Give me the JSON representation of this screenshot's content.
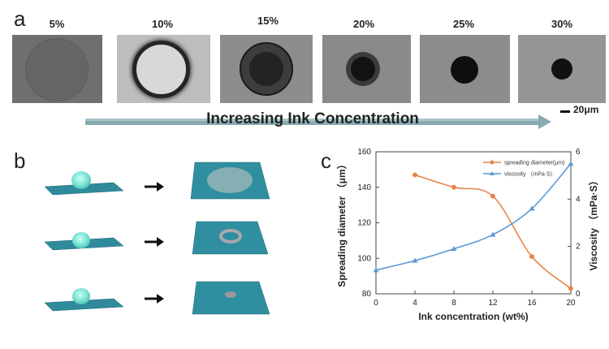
{
  "panels": {
    "a": "a",
    "b": "b",
    "c": "c"
  },
  "micrographs": [
    {
      "label": "5%"
    },
    {
      "label": "10%"
    },
    {
      "label": "15%"
    },
    {
      "label": "20%"
    },
    {
      "label": "25%"
    },
    {
      "label": "30%"
    }
  ],
  "arrow_label": "Increasing Ink Concentration",
  "scale_bar_label": "20μm",
  "colors": {
    "substrate": "#3e8fa3",
    "droplet": "#7fe6d6",
    "orange": "#e8844a",
    "blue": "#5b9bd5",
    "arrow": "#7fa8ae"
  },
  "chart_data": {
    "type": "line",
    "xlabel": "Ink concentration (wt%)",
    "ylabel": "Spreading diameter （μm）",
    "y2label": "Viscosity （mPa·S）",
    "xlim": [
      0,
      20
    ],
    "ylim": [
      80,
      160
    ],
    "y2lim": [
      0,
      6
    ],
    "xticks": [
      0,
      4,
      8,
      12,
      16,
      20
    ],
    "yticks": [
      80,
      100,
      120,
      140,
      160
    ],
    "y2ticks": [
      0,
      2,
      4,
      6
    ],
    "series": [
      {
        "name": "spreading diameter(μm)",
        "axis": "left",
        "color": "#e8844a",
        "marker": "circle",
        "x": [
          4,
          8,
          12,
          16,
          20
        ],
        "values": [
          147,
          140,
          135,
          101,
          83
        ]
      },
      {
        "name": "viscosity （mPa·S）",
        "axis": "right",
        "color": "#5b9bd5",
        "marker": "triangle",
        "x": [
          0,
          4,
          8,
          12,
          16,
          20
        ],
        "values": [
          1.0,
          1.4,
          1.9,
          2.5,
          3.6,
          5.5
        ]
      }
    ],
    "legend_position": "top-right"
  }
}
